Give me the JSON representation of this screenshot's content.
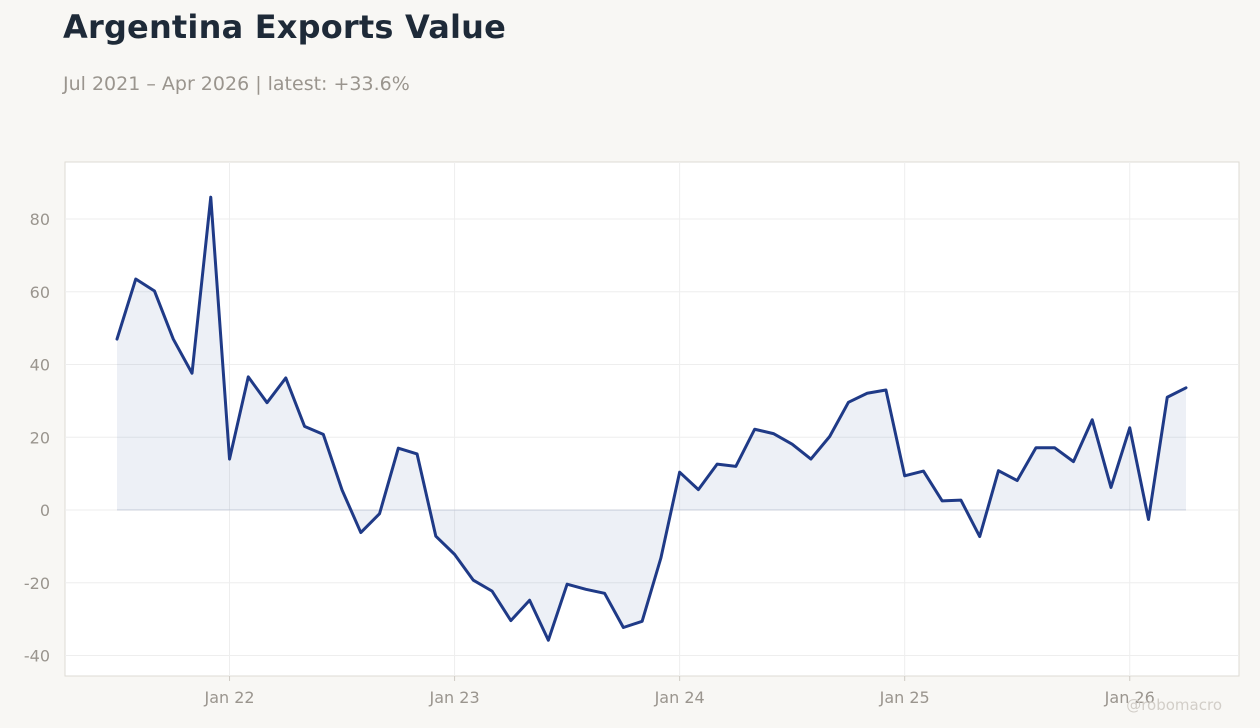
{
  "header": {
    "title": "Argentina Exports Value",
    "subtitle": "Jul 2021 – Apr 2026 | latest: +33.6%"
  },
  "watermark": "@robomacro",
  "colors": {
    "background": "#f8f7f4",
    "plot_background": "#ffffff",
    "line": "#1f3a87",
    "area_fill": "#1f3a87",
    "grid": "#eeeeee",
    "axis_text": "#9a958e",
    "title": "#1e2a38"
  },
  "chart_data": {
    "type": "area",
    "title": "Argentina Exports Value",
    "subtitle": "Jul 2021 – Apr 2026 | latest: +33.6%",
    "xlabel": "",
    "ylabel": "",
    "ylim": [
      -45,
      95
    ],
    "xlim": [
      "2021-05",
      "2026-06"
    ],
    "yticks": [
      -40,
      -20,
      0,
      20,
      40,
      60,
      80
    ],
    "xticks": [
      {
        "date": "2022-01",
        "label": "Jan 22"
      },
      {
        "date": "2023-01",
        "label": "Jan 23"
      },
      {
        "date": "2024-01",
        "label": "Jan 24"
      },
      {
        "date": "2025-01",
        "label": "Jan 25"
      },
      {
        "date": "2026-01",
        "label": "Jan 26"
      }
    ],
    "grid": true,
    "series": [
      {
        "x": [
          "2021-07",
          "2021-08",
          "2021-09",
          "2021-10",
          "2021-11",
          "2021-12",
          "2022-01",
          "2022-02",
          "2022-03",
          "2022-04",
          "2022-05",
          "2022-06",
          "2022-07",
          "2022-08",
          "2022-09",
          "2022-10",
          "2022-11",
          "2022-12",
          "2023-01",
          "2023-02",
          "2023-03",
          "2023-04",
          "2023-05",
          "2023-06",
          "2023-07",
          "2023-08",
          "2023-09",
          "2023-10",
          "2023-11",
          "2023-12",
          "2024-01",
          "2024-02",
          "2024-03",
          "2024-04",
          "2024-05",
          "2024-06",
          "2024-07",
          "2024-08",
          "2024-09",
          "2024-10",
          "2024-11",
          "2024-12",
          "2025-01",
          "2025-02",
          "2025-03",
          "2025-04",
          "2025-05",
          "2025-06",
          "2025-07",
          "2025-08",
          "2025-09",
          "2025-10",
          "2025-11",
          "2025-12",
          "2026-01",
          "2026-02",
          "2026-03",
          "2026-04"
        ],
        "values": [
          47.0,
          63.5,
          60.2,
          47.0,
          37.6,
          86.0,
          14.0,
          36.6,
          29.5,
          36.3,
          23.0,
          20.8,
          5.5,
          -6.2,
          -1.0,
          17.0,
          15.4,
          -7.2,
          -12.2,
          -19.3,
          -22.3,
          -30.4,
          -24.8,
          -35.8,
          -20.4,
          -21.8,
          -22.9,
          -32.3,
          -30.6,
          -13.2,
          10.4,
          5.6,
          12.6,
          12.0,
          22.2,
          21.0,
          18.1,
          14.0,
          20.2,
          29.6,
          32.1,
          33.0,
          9.4,
          10.7,
          2.5,
          2.7,
          -7.3,
          10.8,
          8.1,
          17.1,
          17.1,
          13.3,
          24.8,
          6.2,
          22.6,
          -2.6,
          31.0,
          33.6
        ]
      }
    ]
  }
}
